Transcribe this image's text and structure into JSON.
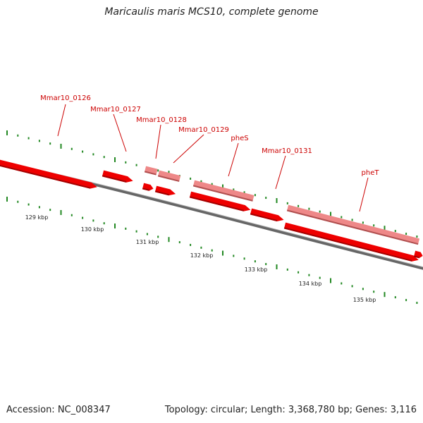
{
  "title": "Maricaulis maris MCS10, complete genome",
  "accession": "Accession: NC_008347",
  "summary": "Topology: circular; Length: 3,368,780 bp; Genes: 3,116",
  "colors": {
    "gene_forward": "#ee0000",
    "gene_reverse": "#ee8888",
    "gene_label": "#cc0000",
    "backbone": "#888888",
    "tick": "#228822"
  },
  "gene_labels": [
    {
      "id": "g126",
      "text": "Mmar10_0126"
    },
    {
      "id": "g127",
      "text": "Mmar10_0127"
    },
    {
      "id": "g128",
      "text": "Mmar10_0128"
    },
    {
      "id": "g129",
      "text": "Mmar10_0129"
    },
    {
      "id": "pheS",
      "text": "pheS"
    },
    {
      "id": "g131",
      "text": "Mmar10_0131"
    },
    {
      "id": "pheT",
      "text": "pheT"
    }
  ],
  "scale_labels": [
    "129 kbp",
    "130 kbp",
    "131 kbp",
    "132 kbp",
    "133 kbp",
    "134 kbp",
    "135 kbp"
  ]
}
